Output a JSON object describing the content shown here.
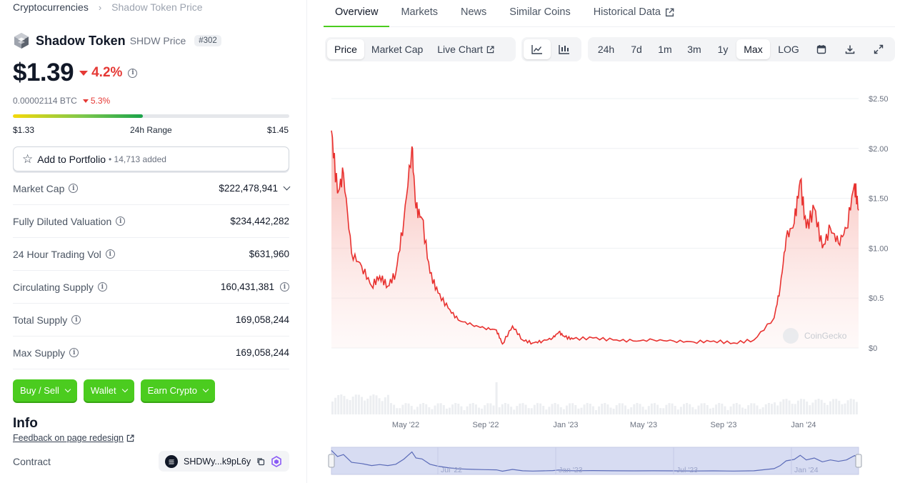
{
  "breadcrumb": {
    "root": "Cryptocurrencies",
    "separator": "›",
    "current": "Shadow Token Price"
  },
  "coin": {
    "name": "Shadow Token",
    "symbol_label": "SHDW Price",
    "rank": "#302",
    "price": "$1.39",
    "change_24h": "4.2%",
    "btc_price": "0.00002114 BTC",
    "btc_change": "5.3%"
  },
  "range": {
    "low": "$1.33",
    "label": "24h Range",
    "high": "$1.45",
    "position": 0.47
  },
  "portfolio": {
    "label": "Add to Portfolio",
    "added": "• 14,713 added"
  },
  "stats": [
    {
      "label": "Market Cap",
      "value": "$222,478,941",
      "info": true,
      "dropdown": true
    },
    {
      "label": "Fully Diluted Valuation",
      "value": "$234,442,282",
      "info": true
    },
    {
      "label": "24 Hour Trading Vol",
      "value": "$631,960",
      "info": true
    },
    {
      "label": "Circulating Supply",
      "value": "160,431,381",
      "info": true,
      "value_info": true
    },
    {
      "label": "Total Supply",
      "value": "169,058,244",
      "info": true
    },
    {
      "label": "Max Supply",
      "value": "169,058,244",
      "info": true
    }
  ],
  "actions": {
    "buy_sell": "Buy / Sell",
    "wallet": "Wallet",
    "earn": "Earn Crypto"
  },
  "info": {
    "title": "Info",
    "feedback": "Feedback on page redesign",
    "contract_label": "Contract",
    "contract_value": "SHDWy...k9pL6y"
  },
  "tabs": [
    {
      "label": "Overview",
      "active": true
    },
    {
      "label": "Markets"
    },
    {
      "label": "News"
    },
    {
      "label": "Similar Coins"
    },
    {
      "label": "Historical Data",
      "external": true
    }
  ],
  "chart_controls": {
    "metric": [
      "Price",
      "Market Cap",
      "Live Chart"
    ],
    "ranges": [
      "24h",
      "7d",
      "1m",
      "3m",
      "1y",
      "Max",
      "LOG"
    ],
    "active_metric": "Price",
    "active_range": "Max"
  },
  "colors": {
    "green": "#4bcc1f",
    "red": "#e53935",
    "line": "#e8312f"
  },
  "chart_data": {
    "type": "area",
    "y_ticks": [
      "$2.50",
      "$2.00",
      "$1.50",
      "$1.00",
      "$0.5",
      "$0"
    ],
    "ylim": [
      0,
      2.5
    ],
    "x_ticks": [
      "May '22",
      "Sep '22",
      "Jan '23",
      "May '23",
      "Sep '23",
      "Jan '24"
    ],
    "x_range": [
      "2022-01",
      "2024-03"
    ],
    "navigator_ticks": [
      "Jul '22",
      "Jan '23",
      "Jul '23",
      "Jan '24"
    ],
    "watermark": "CoinGecko",
    "x": [
      0,
      0.3,
      0.6,
      1,
      1.5,
      2,
      2.4,
      2.8,
      3.2,
      3.6,
      4,
      4.2,
      4.5,
      4.9,
      5.3,
      5.8,
      6.3,
      7,
      7.6,
      8.2,
      8.5,
      9,
      9.5,
      10,
      10.5,
      11,
      11.3,
      11.6,
      12,
      13,
      14,
      15,
      16,
      17,
      18,
      19,
      20,
      21,
      22,
      22.3,
      22.6,
      23,
      23.3,
      23.6,
      24,
      24.4,
      24.8,
      25.2,
      25.6,
      26,
      26.2
    ],
    "values": [
      2.18,
      1.55,
      1.75,
      0.95,
      0.82,
      0.62,
      0.72,
      0.62,
      0.75,
      1.28,
      2.02,
      1.4,
      1.3,
      0.75,
      0.55,
      0.4,
      0.28,
      0.23,
      0.2,
      0.18,
      0.04,
      0.22,
      0.08,
      0.05,
      0.07,
      0.1,
      0.16,
      0.11,
      0.09,
      0.1,
      0.08,
      0.07,
      0.08,
      0.07,
      0.06,
      0.07,
      0.05,
      0.08,
      0.3,
      0.6,
      1.1,
      1.25,
      1.68,
      1.2,
      1.4,
      1.0,
      1.2,
      1.05,
      1.2,
      1.65,
      1.38
    ]
  }
}
